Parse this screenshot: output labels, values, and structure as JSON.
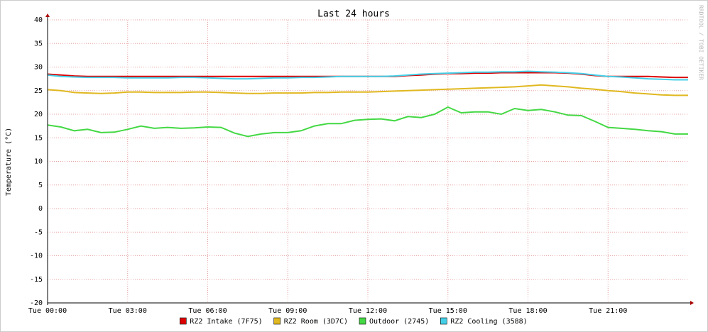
{
  "chart_data": {
    "type": "line",
    "title": "Last 24 hours",
    "y_label": "Temperature (°C)",
    "watermark": "RRDTOOL / TOBI OETIKER",
    "x": [
      0,
      0.5,
      1,
      1.5,
      2,
      2.5,
      3,
      3.5,
      4,
      4.5,
      5,
      5.5,
      6,
      6.5,
      7,
      7.5,
      8,
      8.5,
      9,
      9.5,
      10,
      10.5,
      11,
      11.5,
      12,
      12.5,
      13,
      13.5,
      14,
      14.5,
      15,
      15.5,
      16,
      16.5,
      17,
      17.5,
      18,
      18.5,
      19,
      19.5,
      20,
      20.5,
      21,
      21.5,
      22,
      22.5,
      23,
      23.5,
      24
    ],
    "xlim": [
      0,
      24
    ],
    "xticks": [
      {
        "value": 0,
        "label": "Tue 00:00"
      },
      {
        "value": 3,
        "label": "Tue 03:00"
      },
      {
        "value": 6,
        "label": "Tue 06:00"
      },
      {
        "value": 9,
        "label": "Tue 09:00"
      },
      {
        "value": 12,
        "label": "Tue 12:00"
      },
      {
        "value": 15,
        "label": "Tue 15:00"
      },
      {
        "value": 18,
        "label": "Tue 18:00"
      },
      {
        "value": 21,
        "label": "Tue 21:00"
      }
    ],
    "ylim": [
      -20,
      40
    ],
    "yticks": [
      -20,
      -15,
      -10,
      -5,
      0,
      5,
      10,
      15,
      20,
      25,
      30,
      35,
      40
    ],
    "grid": true,
    "legend": "bottom",
    "series": [
      {
        "name": "RZ2 Intake (7F75)",
        "color": "#dd0000",
        "values": [
          28.5,
          28.3,
          28.1,
          28,
          28,
          28,
          28,
          28,
          28,
          28,
          28,
          28,
          28,
          28,
          28,
          28,
          28,
          28,
          28,
          28,
          28,
          28,
          28,
          28,
          28,
          28,
          28,
          28.2,
          28.3,
          28.5,
          28.6,
          28.6,
          28.7,
          28.7,
          28.8,
          28.8,
          28.8,
          28.8,
          28.8,
          28.7,
          28.5,
          28.2,
          28,
          28,
          28,
          28,
          27.9,
          27.8,
          27.8
        ]
      },
      {
        "name": "RZ2 Room (3D7C)",
        "color": "#e0b820",
        "values": [
          25.2,
          25,
          24.6,
          24.5,
          24.4,
          24.5,
          24.7,
          24.7,
          24.6,
          24.6,
          24.6,
          24.7,
          24.7,
          24.6,
          24.5,
          24.4,
          24.4,
          24.5,
          24.5,
          24.5,
          24.6,
          24.6,
          24.7,
          24.7,
          24.7,
          24.8,
          24.9,
          25,
          25.1,
          25.2,
          25.3,
          25.4,
          25.5,
          25.6,
          25.7,
          25.8,
          26,
          26.2,
          26,
          25.8,
          25.5,
          25.3,
          25,
          24.8,
          24.5,
          24.3,
          24.1,
          24,
          24
        ]
      },
      {
        "name": "Outdoor (2745)",
        "color": "#44d844",
        "values": [
          17.7,
          17.3,
          16.5,
          16.8,
          16.1,
          16.2,
          16.8,
          17.5,
          17,
          17.2,
          17,
          17.1,
          17.3,
          17.2,
          16,
          15.3,
          15.8,
          16.1,
          16.1,
          16.5,
          17.5,
          18,
          18,
          18.7,
          18.9,
          19,
          18.6,
          19.5,
          19.3,
          20,
          21.5,
          20.3,
          20.5,
          20.5,
          20,
          21.2,
          20.8,
          21,
          20.5,
          19.8,
          19.7,
          18.5,
          17.2,
          17,
          16.8,
          16.5,
          16.3,
          15.8,
          15.8
        ]
      },
      {
        "name": "RZ2 Cooling (3588)",
        "color": "#44d0e8",
        "values": [
          28.3,
          28,
          27.9,
          27.8,
          27.8,
          27.8,
          27.7,
          27.7,
          27.7,
          27.7,
          27.8,
          27.8,
          27.7,
          27.6,
          27.5,
          27.5,
          27.6,
          27.7,
          27.7,
          27.8,
          27.8,
          27.9,
          28,
          28,
          28,
          28,
          28.1,
          28.3,
          28.5,
          28.6,
          28.7,
          28.8,
          28.9,
          28.9,
          29,
          29,
          29.1,
          29,
          28.9,
          28.8,
          28.6,
          28.3,
          28,
          27.9,
          27.7,
          27.5,
          27.4,
          27.3,
          27.3
        ]
      }
    ]
  }
}
